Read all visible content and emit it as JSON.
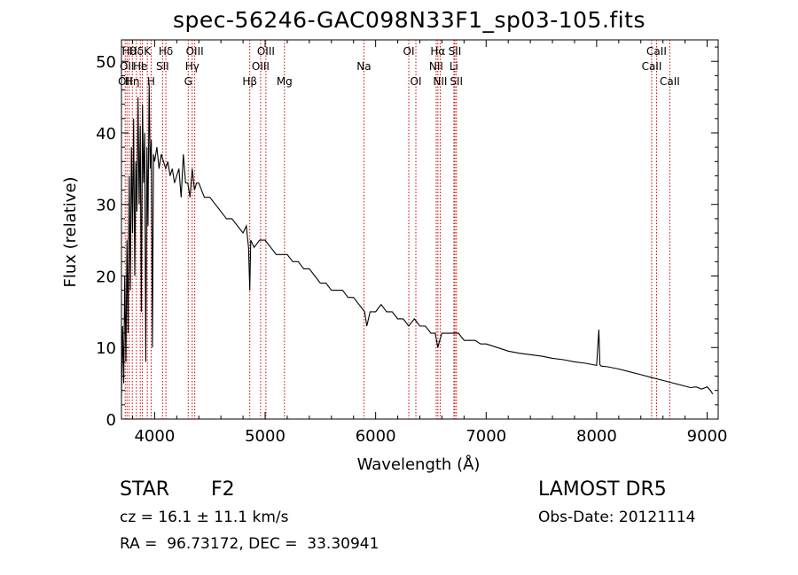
{
  "chart_data": {
    "type": "line",
    "title": "spec-56246-GAC098N33F1_sp03-105.fits",
    "xlabel": "Wavelength (Å)",
    "ylabel": "Flux (relative)",
    "xlim": [
      3700,
      9100
    ],
    "ylim": [
      0,
      53
    ],
    "xticks": [
      4000,
      5000,
      6000,
      7000,
      8000,
      9000
    ],
    "xtick_labels": [
      "4000",
      "5000",
      "6000",
      "7000",
      "8000",
      "9000"
    ],
    "yticks": [
      0,
      10,
      20,
      30,
      40,
      50
    ],
    "ytick_labels": [
      "0",
      "10",
      "20",
      "30",
      "40",
      "50"
    ],
    "grid": false,
    "line_color": "#000000",
    "marker_color": "#cc0000",
    "series": [
      {
        "x": [
          3700,
          3710,
          3720,
          3730,
          3740,
          3750,
          3760,
          3770,
          3780,
          3790,
          3800,
          3810,
          3820,
          3830,
          3840,
          3850,
          3860,
          3870,
          3880,
          3890,
          3900,
          3910,
          3920,
          3930,
          3940,
          3950,
          3960,
          3970,
          3980,
          3990,
          4000,
          4020,
          4040,
          4060,
          4080,
          4100,
          4120,
          4140,
          4160,
          4180,
          4200,
          4220,
          4240,
          4260,
          4280,
          4300,
          4320,
          4340,
          4360,
          4380,
          4400,
          4450,
          4500,
          4550,
          4600,
          4650,
          4700,
          4750,
          4800,
          4830,
          4850,
          4861,
          4870,
          4900,
          4950,
          5000,
          5050,
          5100,
          5150,
          5200,
          5250,
          5300,
          5350,
          5400,
          5450,
          5500,
          5550,
          5600,
          5650,
          5700,
          5750,
          5800,
          5850,
          5900,
          5920,
          5950,
          6000,
          6050,
          6100,
          6150,
          6200,
          6250,
          6300,
          6350,
          6400,
          6450,
          6500,
          6540,
          6563,
          6580,
          6600,
          6650,
          6700,
          6750,
          6800,
          6850,
          6900,
          6950,
          7000,
          7100,
          7200,
          7300,
          7400,
          7500,
          7600,
          7700,
          7800,
          7900,
          8000,
          8020,
          8030,
          8040,
          8100,
          8200,
          8300,
          8400,
          8500,
          8600,
          8700,
          8800,
          8850,
          8900,
          8950,
          9000,
          9030,
          9050
        ],
        "y": [
          3,
          13,
          5,
          20,
          8,
          25,
          12,
          34,
          18,
          38,
          26,
          42,
          20,
          36,
          29,
          45,
          30,
          41,
          15,
          44,
          33,
          40,
          8,
          38,
          27,
          47,
          35,
          39,
          10,
          37,
          36,
          38,
          35,
          37,
          36,
          35,
          36,
          34,
          35,
          33,
          34,
          35,
          31,
          37,
          33,
          33,
          31,
          35,
          32,
          33,
          33,
          31,
          31,
          30,
          29,
          28,
          28,
          27,
          26,
          27,
          24,
          18,
          25,
          24,
          25,
          25,
          24,
          23,
          23,
          23,
          22,
          22,
          21,
          21,
          20,
          19,
          19,
          18,
          18,
          18,
          17,
          17,
          16,
          15,
          13,
          15,
          15,
          16,
          15,
          15,
          14,
          14,
          13,
          14,
          13,
          13,
          12,
          12,
          10,
          11,
          12,
          12,
          12,
          12,
          11,
          11,
          11,
          10.5,
          10.5,
          10,
          9.5,
          9.2,
          9,
          8.8,
          8.5,
          8.3,
          8,
          7.8,
          7.5,
          12.5,
          7.6,
          7.4,
          7.3,
          7,
          6.6,
          6.2,
          5.8,
          5.4,
          5,
          4.6,
          4.4,
          4.5,
          4.2,
          4.5,
          4,
          3.5
        ]
      }
    ],
    "lines": [
      {
        "wl": 3734,
        "row": 2,
        "label": "OII"
      },
      {
        "wl": 3750,
        "row": 1,
        "label": "OII"
      },
      {
        "wl": 3770,
        "row": 0,
        "label": "Hθ"
      },
      {
        "wl": 3798,
        "row": 2,
        "label": "Hη"
      },
      {
        "wl": 3835,
        "row": 0,
        "label": "Hδ"
      },
      {
        "wl": 3870,
        "row": 1,
        "label": "He"
      },
      {
        "wl": 3889,
        "row": 1,
        "label": "I"
      },
      {
        "wl": 3934,
        "row": 0,
        "label": "K"
      },
      {
        "wl": 3968,
        "row": 2,
        "label": "H"
      },
      {
        "wl": 4072,
        "row": 1,
        "label": "SII"
      },
      {
        "wl": 4102,
        "row": 0,
        "label": "Hδ"
      },
      {
        "wl": 4304,
        "row": 2,
        "label": "G"
      },
      {
        "wl": 4340,
        "row": 1,
        "label": "Hγ"
      },
      {
        "wl": 4363,
        "row": 0,
        "label": "OIII"
      },
      {
        "wl": 4861,
        "row": 2,
        "label": "Hβ"
      },
      {
        "wl": 4959,
        "row": 1,
        "label": "OIII"
      },
      {
        "wl": 5007,
        "row": 0,
        "label": "OIII"
      },
      {
        "wl": 5175,
        "row": 2,
        "label": "Mg"
      },
      {
        "wl": 5894,
        "row": 1,
        "label": "Na"
      },
      {
        "wl": 6300,
        "row": 0,
        "label": "OI"
      },
      {
        "wl": 6364,
        "row": 2,
        "label": "OI"
      },
      {
        "wl": 6548,
        "row": 1,
        "label": "NII"
      },
      {
        "wl": 6563,
        "row": 0,
        "label": "Hα"
      },
      {
        "wl": 6584,
        "row": 2,
        "label": "NII"
      },
      {
        "wl": 6708,
        "row": 1,
        "label": "Li"
      },
      {
        "wl": 6717,
        "row": 0,
        "label": "SII"
      },
      {
        "wl": 6731,
        "row": 2,
        "label": "SII"
      },
      {
        "wl": 8498,
        "row": 1,
        "label": "CaII"
      },
      {
        "wl": 8542,
        "row": 0,
        "label": "CaII"
      },
      {
        "wl": 8662,
        "row": 2,
        "label": "CaII"
      }
    ]
  },
  "info": {
    "class": "STAR",
    "subclass": "F2",
    "redshift": "cz = 16.1 ± 11.1 km/s",
    "coords": "RA =  96.73172, DEC =  33.30941",
    "survey": "LAMOST DR5",
    "obs_date": "Obs-Date: 20121114"
  }
}
